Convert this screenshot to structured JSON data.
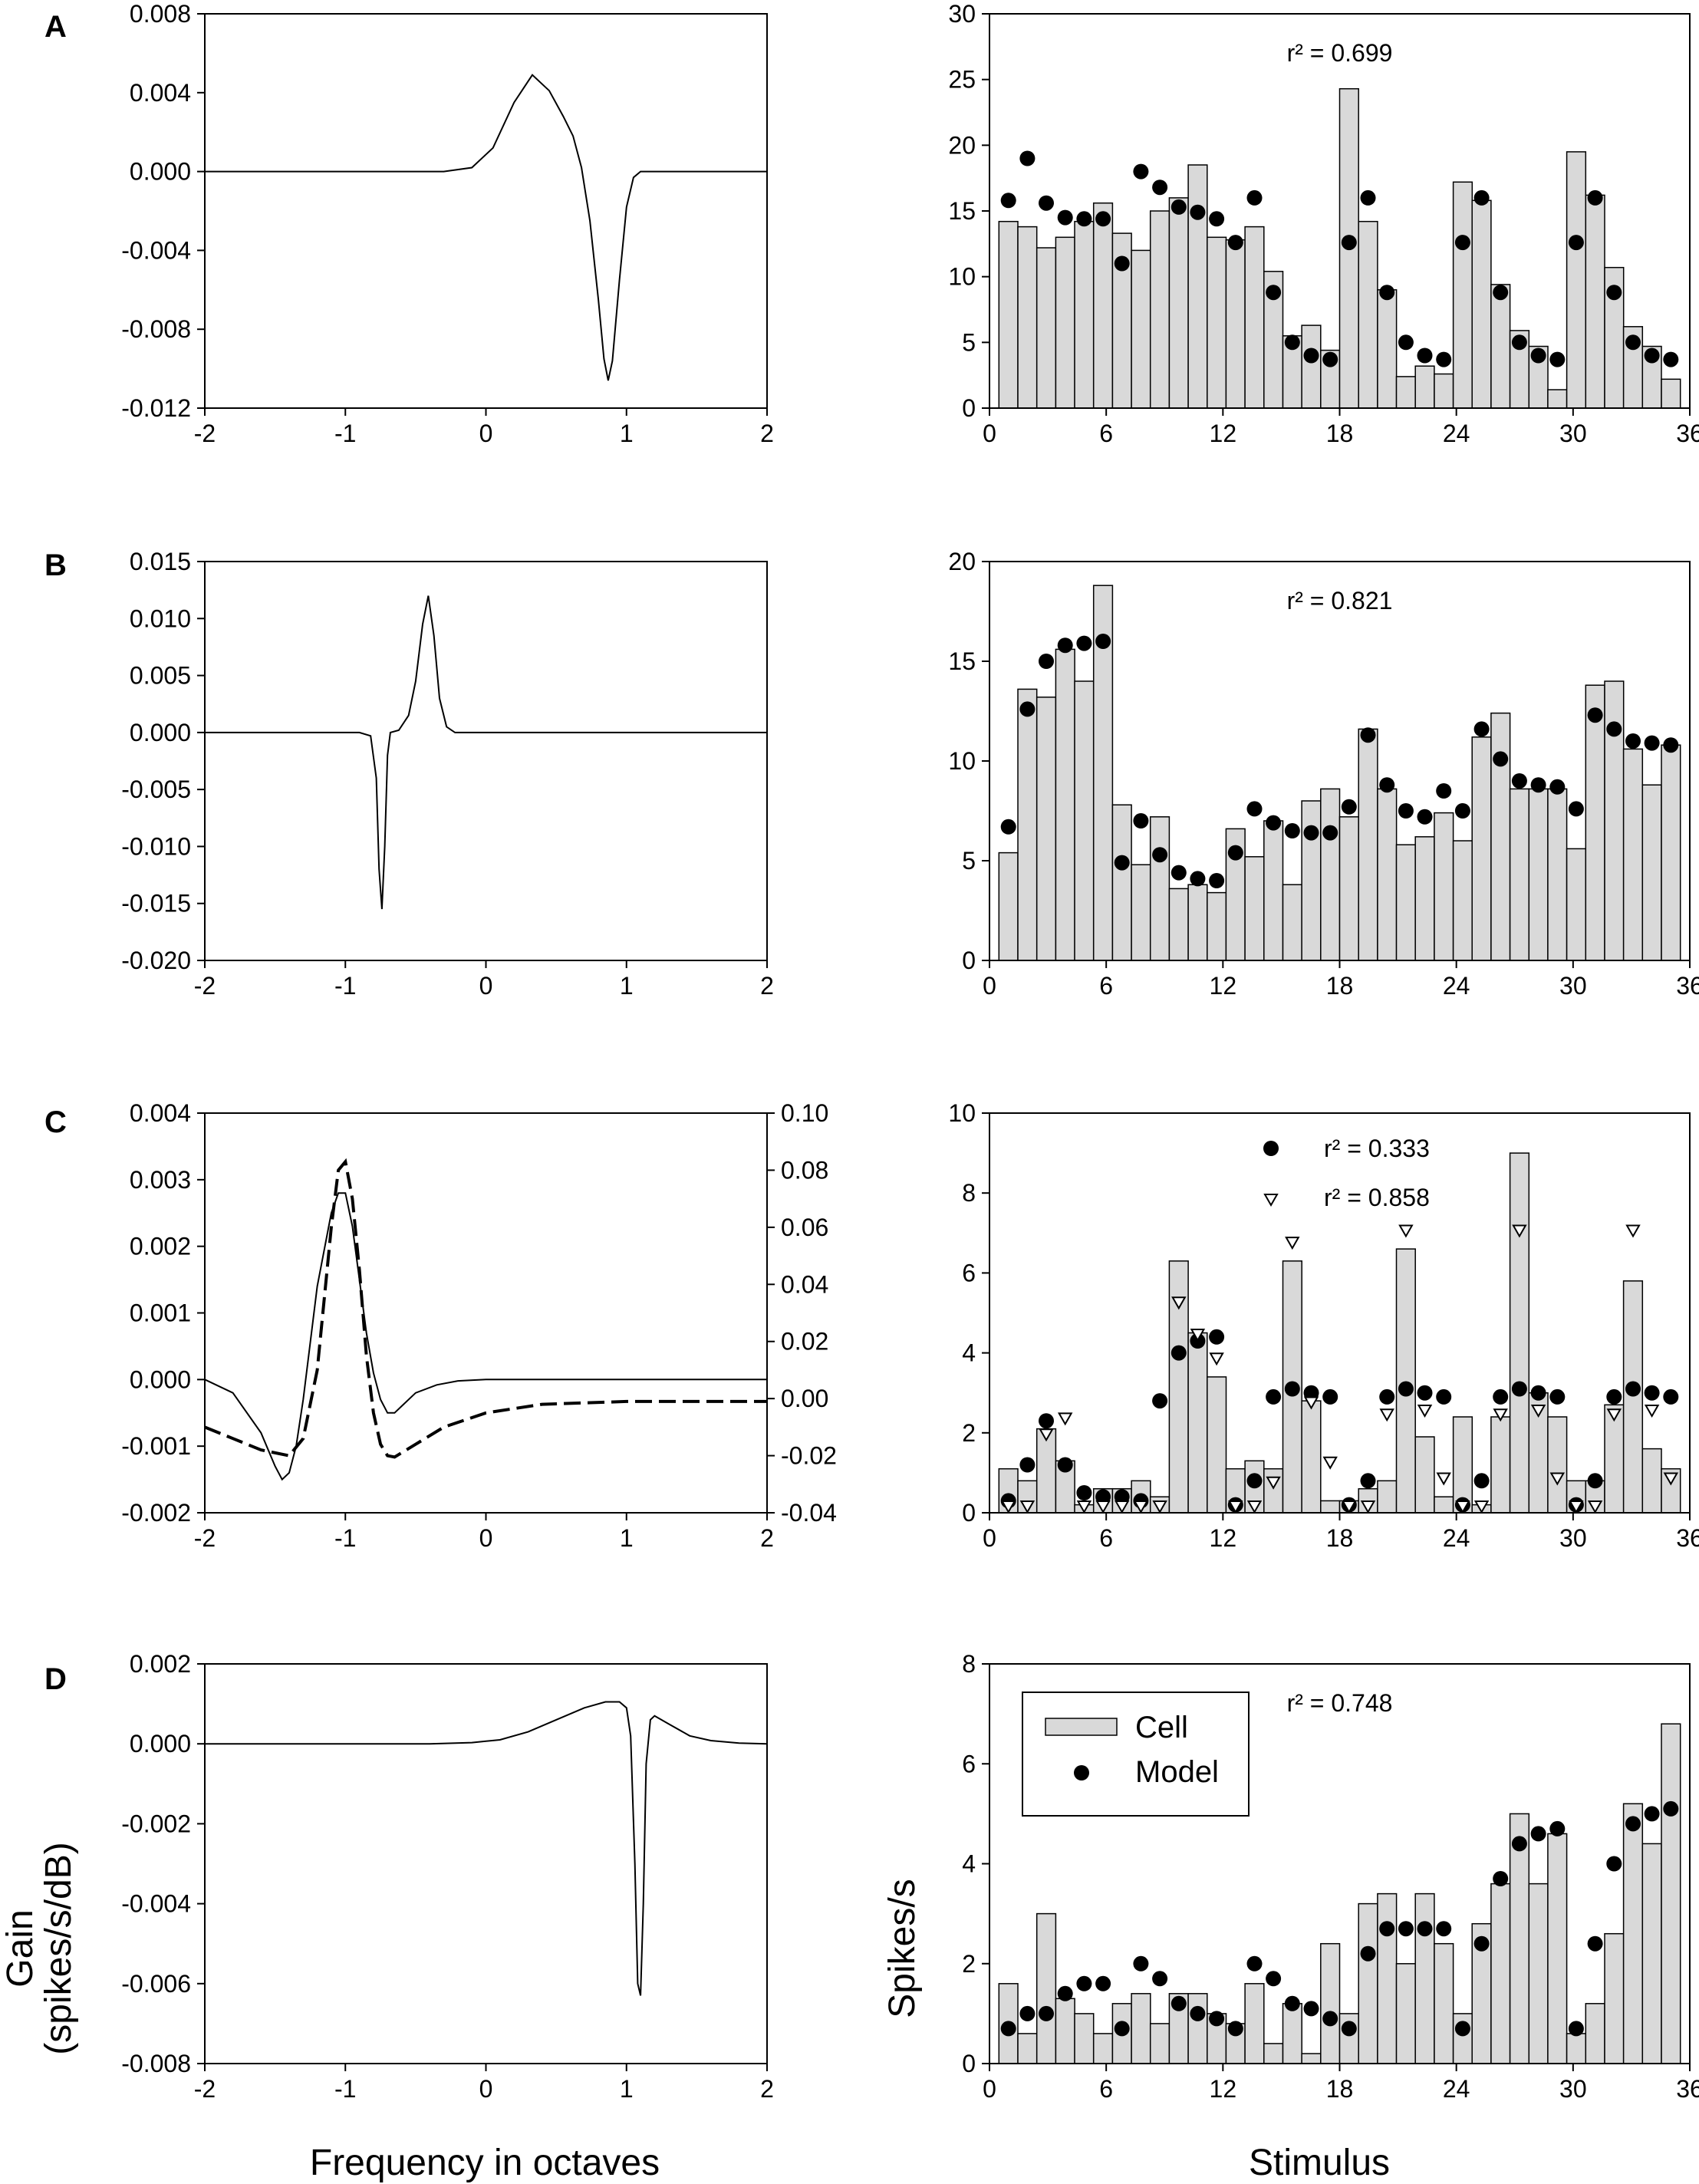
{
  "figure": {
    "y_axis_title_left_line1": "Gain",
    "y_axis_title_left_line2": "(spikes/s/dB)",
    "x_axis_title_left": "Frequency in octaves",
    "y_axis_title_right": "Spikes/s",
    "x_axis_title_right": "Stimulus",
    "legend": {
      "cell": "Cell",
      "model": "Model"
    }
  },
  "chart_data": [
    {
      "panel": "A",
      "side": "left",
      "type": "line",
      "xlim": [
        -2,
        2
      ],
      "ylim": [
        -0.012,
        0.008
      ],
      "xticks": [
        "-2",
        "-1",
        "0",
        "1",
        "2"
      ],
      "yticks": [
        "-0.012",
        "-0.008",
        "-0.004",
        "0.000",
        "0.004",
        "0.008"
      ],
      "series": [
        {
          "name": "gain",
          "style": "solid",
          "x": [
            -2,
            -0.3,
            -0.1,
            0.05,
            0.2,
            0.33,
            0.45,
            0.55,
            0.62,
            0.68,
            0.74,
            0.8,
            0.84,
            0.87,
            0.9,
            0.95,
            1.0,
            1.05,
            1.1,
            2
          ],
          "y": [
            0,
            0,
            0.0002,
            0.0012,
            0.0035,
            0.0049,
            0.0041,
            0.0028,
            0.0018,
            0.0002,
            -0.0025,
            -0.0065,
            -0.0095,
            -0.0106,
            -0.0096,
            -0.0055,
            -0.0018,
            -0.0003,
            0,
            0
          ]
        }
      ]
    },
    {
      "panel": "A",
      "side": "right",
      "type": "bar",
      "xlim": [
        0,
        37
      ],
      "ylim": [
        0,
        30
      ],
      "xticks": [
        "0",
        "6",
        "12",
        "18",
        "24",
        "30",
        "36"
      ],
      "yticks": [
        "0",
        "5",
        "10",
        "15",
        "20",
        "25",
        "30"
      ],
      "r2": "r² = 0.699",
      "cell": [
        14.2,
        13.8,
        12.2,
        13.0,
        14.2,
        15.6,
        13.3,
        12.0,
        15.0,
        16.0,
        18.5,
        13.0,
        12.8,
        13.8,
        10.4,
        5.5,
        6.3,
        4.4,
        24.3,
        14.2,
        9.0,
        2.4,
        3.2,
        2.6,
        17.2,
        15.8,
        9.4,
        5.9,
        4.7,
        1.4,
        19.5,
        16.2,
        10.7,
        6.2,
        4.7,
        2.2
      ],
      "model": [
        15.8,
        19.0,
        15.6,
        14.5,
        14.4,
        14.4,
        11.0,
        18.0,
        16.8,
        15.3,
        14.9,
        14.4,
        12.6,
        16.0,
        8.8,
        5.0,
        4.0,
        3.7,
        12.6,
        16.0,
        8.8,
        5.0,
        4.0,
        3.7,
        12.6,
        16.0,
        8.8,
        5.0,
        4.0,
        3.7,
        12.6,
        16.0,
        8.8,
        5.0,
        4.0,
        3.7
      ]
    },
    {
      "panel": "B",
      "side": "left",
      "type": "line",
      "xlim": [
        -2,
        2
      ],
      "ylim": [
        -0.02,
        0.015
      ],
      "xticks": [
        "-2",
        "-1",
        "0",
        "1",
        "2"
      ],
      "yticks": [
        "-0.020",
        "-0.015",
        "-0.010",
        "-0.005",
        "0.000",
        "0.005",
        "0.010",
        "0.015"
      ],
      "series": [
        {
          "name": "gain",
          "style": "solid",
          "x": [
            -2,
            -0.9,
            -0.82,
            -0.78,
            -0.76,
            -0.74,
            -0.72,
            -0.7,
            -0.68,
            -0.62,
            -0.55,
            -0.5,
            -0.45,
            -0.41,
            -0.37,
            -0.33,
            -0.28,
            -0.22,
            2
          ],
          "y": [
            0,
            0,
            -0.0003,
            -0.004,
            -0.012,
            -0.0155,
            -0.01,
            -0.002,
            0,
            0.0002,
            0.0015,
            0.0045,
            0.0095,
            0.012,
            0.0085,
            0.003,
            0.0005,
            0,
            0
          ]
        }
      ]
    },
    {
      "panel": "B",
      "side": "right",
      "type": "bar",
      "xlim": [
        0,
        37
      ],
      "ylim": [
        0,
        20
      ],
      "xticks": [
        "0",
        "6",
        "12",
        "18",
        "24",
        "30",
        "36"
      ],
      "yticks": [
        "0",
        "5",
        "10",
        "15",
        "20"
      ],
      "r2": "r² = 0.821",
      "cell": [
        5.4,
        13.6,
        13.2,
        15.6,
        14.0,
        18.8,
        7.8,
        4.8,
        7.2,
        3.6,
        3.8,
        3.4,
        6.6,
        5.2,
        7.0,
        3.8,
        8.0,
        8.6,
        7.2,
        11.6,
        8.6,
        5.8,
        6.2,
        7.4,
        6.0,
        11.2,
        12.4,
        8.6,
        8.6,
        8.6,
        5.6,
        13.8,
        14.0,
        10.6,
        8.8,
        10.8
      ],
      "model": [
        6.7,
        12.6,
        15.0,
        15.8,
        15.9,
        16.0,
        4.9,
        7.0,
        5.3,
        4.4,
        4.1,
        4.0,
        5.4,
        7.6,
        6.9,
        6.5,
        6.4,
        6.4,
        7.7,
        11.3,
        8.8,
        7.5,
        7.2,
        8.5,
        7.5,
        11.6,
        10.1,
        9.0,
        8.8,
        8.7,
        7.6,
        12.3,
        11.6,
        11.0,
        10.9,
        10.8
      ]
    },
    {
      "panel": "C",
      "side": "left",
      "type": "line",
      "xlim": [
        -2,
        2
      ],
      "ylim": [
        -0.002,
        0.004
      ],
      "y2lim": [
        -0.04,
        0.1
      ],
      "xticks": [
        "-2",
        "-1",
        "0",
        "1",
        "2"
      ],
      "yticks": [
        "-0.002",
        "-0.001",
        "0.000",
        "0.001",
        "0.002",
        "0.003",
        "0.004"
      ],
      "y2ticks": [
        "-0.04",
        "-0.02",
        "0.00",
        "0.02",
        "0.04",
        "0.06",
        "0.08",
        "0.10"
      ],
      "series": [
        {
          "name": "solid",
          "style": "solid",
          "axis": "left",
          "x": [
            -2,
            -1.8,
            -1.6,
            -1.5,
            -1.45,
            -1.4,
            -1.35,
            -1.3,
            -1.2,
            -1.1,
            -1.05,
            -1.0,
            -0.95,
            -0.9,
            -0.85,
            -0.8,
            -0.75,
            -0.7,
            -0.65,
            -0.6,
            -0.5,
            -0.35,
            -0.2,
            0,
            2
          ],
          "y": [
            0,
            -0.0002,
            -0.0008,
            -0.0013,
            -0.0015,
            -0.0014,
            -0.001,
            -0.0003,
            0.0014,
            0.0025,
            0.0028,
            0.0028,
            0.0023,
            0.0015,
            0.0007,
            0.0001,
            -0.0003,
            -0.0005,
            -0.0005,
            -0.0004,
            -0.0002,
            -8e-05,
            -2e-05,
            0,
            0
          ]
        },
        {
          "name": "dashed",
          "style": "dashed",
          "axis": "right",
          "x": [
            -2,
            -1.8,
            -1.6,
            -1.4,
            -1.3,
            -1.2,
            -1.1,
            -1.05,
            -1.0,
            -0.95,
            -0.9,
            -0.85,
            -0.8,
            -0.75,
            -0.7,
            -0.65,
            -0.5,
            -0.3,
            0,
            0.4,
            1.0,
            2
          ],
          "y": [
            -0.01,
            -0.014,
            -0.018,
            -0.02,
            -0.014,
            0.01,
            0.06,
            0.08,
            0.083,
            0.07,
            0.045,
            0.015,
            -0.005,
            -0.016,
            -0.02,
            -0.0205,
            -0.016,
            -0.01,
            -0.005,
            -0.002,
            -0.001,
            -0.001
          ]
        }
      ]
    },
    {
      "panel": "C",
      "side": "right",
      "type": "bar",
      "xlim": [
        0,
        37
      ],
      "ylim": [
        0,
        10
      ],
      "xticks": [
        "0",
        "6",
        "12",
        "18",
        "24",
        "30",
        "36"
      ],
      "yticks": [
        "0",
        "2",
        "4",
        "6",
        "8",
        "10"
      ],
      "r2_circle": "r² = 0.333",
      "r2_triangle": "r² = 0.858",
      "cell": [
        1.1,
        0.8,
        2.1,
        1.3,
        0.2,
        0.6,
        0.6,
        0.8,
        0.4,
        6.3,
        4.5,
        3.4,
        1.1,
        1.3,
        1.1,
        6.3,
        2.8,
        0.3,
        0.3,
        0.6,
        0.8,
        6.6,
        1.9,
        0.4,
        2.4,
        0.2,
        2.4,
        9.0,
        3.0,
        2.4,
        0.8,
        0.8,
        2.7,
        5.8,
        1.6,
        1.1
      ],
      "model": [
        0.3,
        1.2,
        2.3,
        1.2,
        0.5,
        0.4,
        0.4,
        0.3,
        2.8,
        4.0,
        4.3,
        4.4,
        0.2,
        0.8,
        2.9,
        3.1,
        3.0,
        2.9,
        0.2,
        0.8,
        2.9,
        3.1,
        3.0,
        2.9,
        0.2,
        0.8,
        2.9,
        3.1,
        3.0,
        2.9,
        0.2,
        0.8,
        2.9,
        3.1,
        3.0,
        2.9
      ],
      "model2": [
        0,
        0,
        1.8,
        2.2,
        0,
        0,
        0,
        0,
        0,
        5.1,
        4.3,
        3.7,
        0,
        0,
        0.6,
        6.6,
        2.6,
        1.1,
        0,
        0,
        2.3,
        6.9,
        2.4,
        0.7,
        0,
        0,
        2.3,
        6.9,
        2.4,
        0.7,
        0,
        0,
        2.3,
        6.9,
        2.4,
        0.7
      ]
    },
    {
      "panel": "D",
      "side": "left",
      "type": "line",
      "xlim": [
        -2,
        2
      ],
      "ylim": [
        -0.008,
        0.002
      ],
      "xticks": [
        "-2",
        "-1",
        "0",
        "1",
        "2"
      ],
      "yticks": [
        "-0.008",
        "-0.006",
        "-0.004",
        "-0.002",
        "0.000",
        "0.002"
      ],
      "series": [
        {
          "name": "gain",
          "style": "solid",
          "x": [
            -2,
            -0.4,
            -0.1,
            0.1,
            0.3,
            0.5,
            0.7,
            0.85,
            0.95,
            1.0,
            1.03,
            1.06,
            1.08,
            1.1,
            1.12,
            1.14,
            1.17,
            1.2,
            1.3,
            1.45,
            1.6,
            1.8,
            2
          ],
          "y": [
            0,
            0,
            3e-05,
            0.0001,
            0.0003,
            0.0006,
            0.0009,
            0.00105,
            0.00105,
            0.0009,
            0.0002,
            -0.003,
            -0.006,
            -0.0063,
            -0.004,
            -0.0005,
            0.0006,
            0.0007,
            0.0005,
            0.0002,
            8e-05,
            2e-05,
            0
          ]
        }
      ]
    },
    {
      "panel": "D",
      "side": "right",
      "type": "bar",
      "xlim": [
        0,
        37
      ],
      "ylim": [
        0,
        8
      ],
      "xticks": [
        "0",
        "6",
        "12",
        "18",
        "24",
        "30",
        "36"
      ],
      "yticks": [
        "0",
        "2",
        "4",
        "6",
        "8"
      ],
      "r2": "r² = 0.748",
      "cell": [
        1.6,
        0.6,
        3.0,
        1.3,
        1.0,
        0.6,
        1.2,
        1.4,
        0.8,
        1.4,
        1.4,
        1.0,
        0.8,
        1.6,
        0.4,
        1.2,
        0.2,
        2.4,
        1.0,
        3.2,
        3.4,
        2.0,
        3.4,
        2.4,
        1.0,
        2.8,
        3.6,
        5.0,
        3.6,
        4.6,
        0.6,
        1.2,
        2.6,
        5.2,
        4.4,
        6.8
      ],
      "model": [
        0.7,
        1.0,
        1.0,
        1.4,
        1.6,
        1.6,
        0.7,
        2.0,
        1.7,
        1.2,
        1.0,
        0.9,
        0.7,
        2.0,
        1.7,
        1.2,
        1.1,
        0.9,
        0.7,
        2.2,
        2.7,
        2.7,
        2.7,
        2.7,
        0.7,
        2.4,
        3.7,
        4.4,
        4.6,
        4.7,
        0.7,
        2.4,
        4.0,
        4.8,
        5.0,
        5.1
      ]
    }
  ]
}
